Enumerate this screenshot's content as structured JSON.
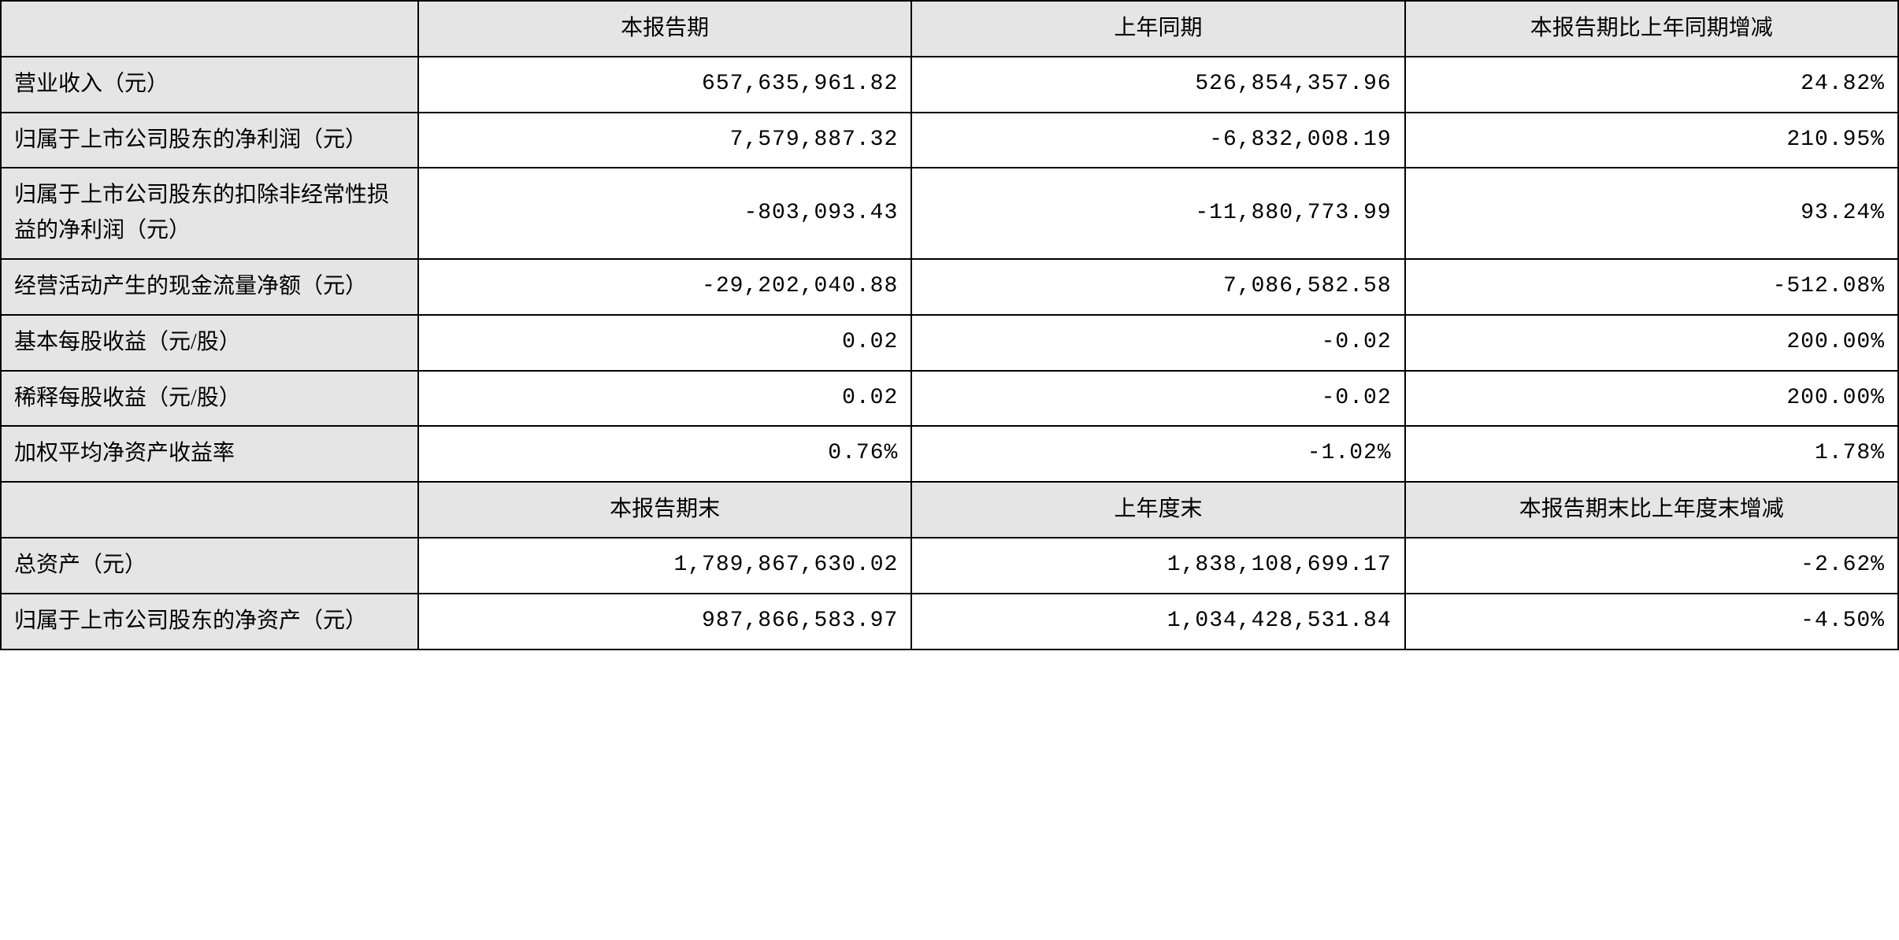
{
  "table": {
    "type": "table",
    "background_color": "#ffffff",
    "header_bg_color": "#e5e5e5",
    "label_bg_color": "#e5e5e5",
    "border_color": "#000000",
    "border_width": 2,
    "font_family_label": "SimSun",
    "font_family_value": "Courier New",
    "font_size": 28,
    "text_color": "#000000",
    "columns": [
      {
        "key": "label",
        "width_pct": 22,
        "align": "left"
      },
      {
        "key": "current",
        "width_pct": 26,
        "align": "right"
      },
      {
        "key": "previous",
        "width_pct": 26,
        "align": "right"
      },
      {
        "key": "change",
        "width_pct": 26,
        "align": "right"
      }
    ],
    "header1": {
      "blank": "",
      "col1": "本报告期",
      "col2": "上年同期",
      "col3": "本报告期比上年同期增减"
    },
    "rows1": [
      {
        "label": "营业收入（元）",
        "current": "657,635,961.82",
        "previous": "526,854,357.96",
        "change": "24.82%"
      },
      {
        "label": "归属于上市公司股东的净利润（元）",
        "current": "7,579,887.32",
        "previous": "-6,832,008.19",
        "change": "210.95%"
      },
      {
        "label": "归属于上市公司股东的扣除非经常性损益的净利润（元）",
        "current": "-803,093.43",
        "previous": "-11,880,773.99",
        "change": "93.24%"
      },
      {
        "label": "经营活动产生的现金流量净额（元）",
        "current": "-29,202,040.88",
        "previous": "7,086,582.58",
        "change": "-512.08%"
      },
      {
        "label": "基本每股收益（元/股）",
        "current": "0.02",
        "previous": "-0.02",
        "change": "200.00%"
      },
      {
        "label": "稀释每股收益（元/股）",
        "current": "0.02",
        "previous": "-0.02",
        "change": "200.00%"
      },
      {
        "label": "加权平均净资产收益率",
        "current": "0.76%",
        "previous": "-1.02%",
        "change": "1.78%"
      }
    ],
    "header2": {
      "blank": "",
      "col1": "本报告期末",
      "col2": "上年度末",
      "col3": "本报告期末比上年度末增减"
    },
    "rows2": [
      {
        "label": "总资产（元）",
        "current": "1,789,867,630.02",
        "previous": "1,838,108,699.17",
        "change": "-2.62%"
      },
      {
        "label": "归属于上市公司股东的净资产（元）",
        "current": "987,866,583.97",
        "previous": "1,034,428,531.84",
        "change": "-4.50%"
      }
    ]
  }
}
